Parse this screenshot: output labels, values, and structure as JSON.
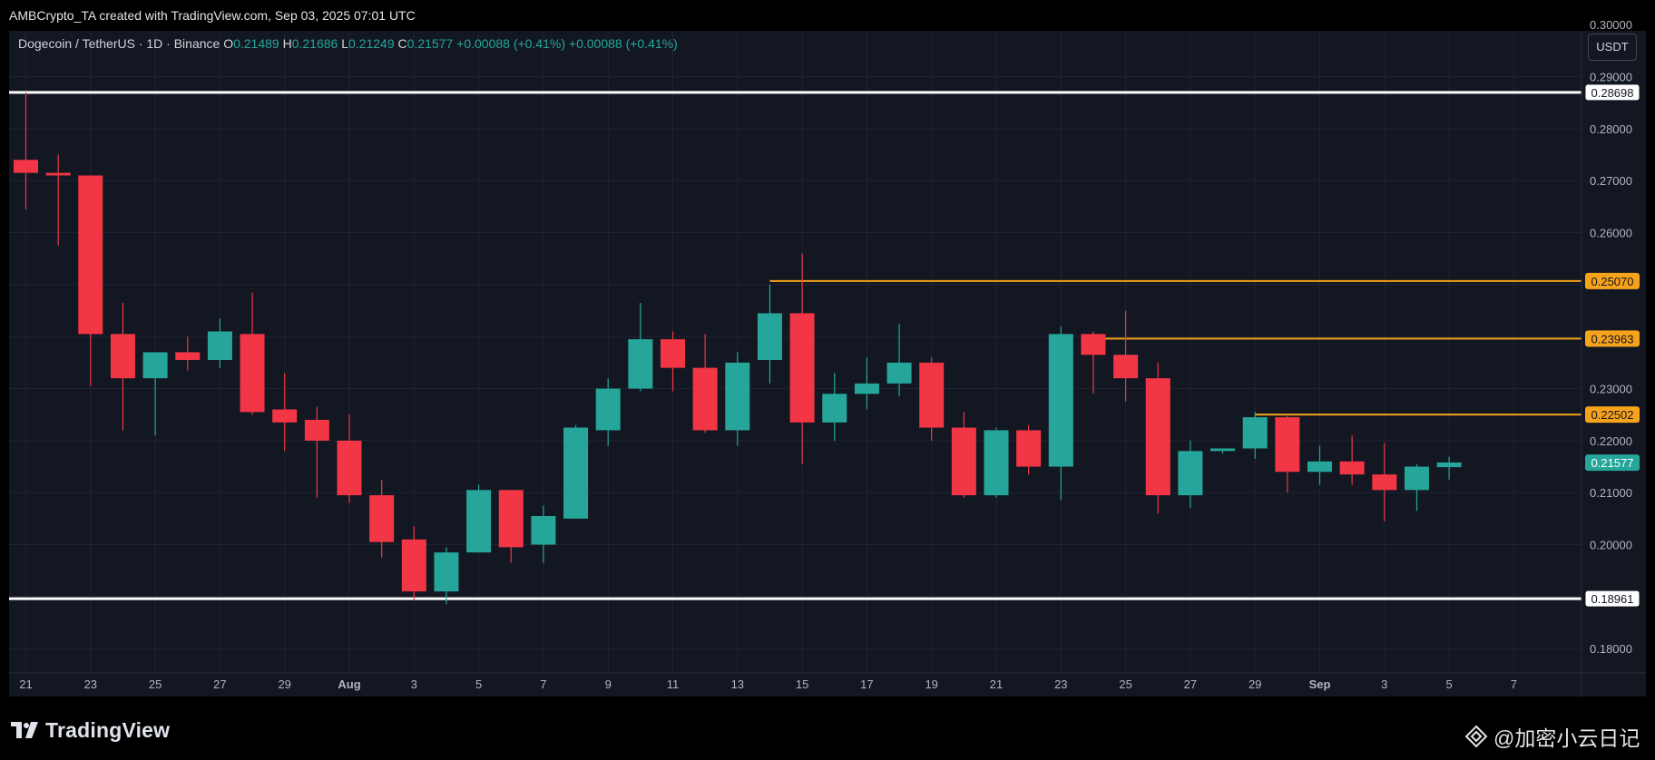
{
  "header": {
    "creator_line": "AMBCrypto_TA created with TradingView.com, Sep 03, 2025 07:01 UTC"
  },
  "legend": {
    "symbol": "Dogecoin / TetherUS · 1D · Binance",
    "open_label": "O",
    "open": "0.21489",
    "high_label": "H",
    "high": "0.21686",
    "low_label": "L",
    "low": "0.21249",
    "close_label": "C",
    "close": "0.21577",
    "change": "+0.00088 (+0.41%)",
    "change2": "+0.00088 (+0.41%)"
  },
  "unit_button": "USDT",
  "footer": {
    "brand": "TradingView",
    "watermark": "@加密小云日记"
  },
  "colors": {
    "up": "#26a69a",
    "down": "#f23645",
    "support_resistance": "#ffffff",
    "horizontal_ray": "#f7a21b",
    "background": "#131722",
    "grid": "#1f2433"
  },
  "chart_data": {
    "type": "candlestick",
    "ylim": [
      0.1755,
      0.2955
    ],
    "y_ticks": [
      "0.18000",
      "0.19000",
      "0.20000",
      "0.21000",
      "0.22000",
      "0.23000",
      "0.24000",
      "0.25000",
      "0.26000",
      "0.27000",
      "0.28000",
      "0.29000"
    ],
    "y_top_partial_tick": "0.30000",
    "x_ticks": [
      "21",
      "23",
      "25",
      "27",
      "29",
      "Aug",
      "3",
      "5",
      "7",
      "9",
      "11",
      "13",
      "15",
      "17",
      "19",
      "21",
      "23",
      "25",
      "27",
      "29",
      "Sep",
      "3",
      "5",
      "7"
    ],
    "start_date": "2025-07-21",
    "candles": [
      {
        "o": 0.274,
        "h": 0.287,
        "l": 0.2645,
        "c": 0.2715
      },
      {
        "o": 0.2715,
        "h": 0.275,
        "l": 0.2575,
        "c": 0.271
      },
      {
        "o": 0.271,
        "h": 0.271,
        "l": 0.2305,
        "c": 0.2405
      },
      {
        "o": 0.2405,
        "h": 0.2465,
        "l": 0.222,
        "c": 0.232
      },
      {
        "o": 0.232,
        "h": 0.237,
        "l": 0.221,
        "c": 0.237
      },
      {
        "o": 0.237,
        "h": 0.24,
        "l": 0.2335,
        "c": 0.2355
      },
      {
        "o": 0.2355,
        "h": 0.2435,
        "l": 0.234,
        "c": 0.241
      },
      {
        "o": 0.2405,
        "h": 0.2485,
        "l": 0.225,
        "c": 0.2255
      },
      {
        "o": 0.226,
        "h": 0.233,
        "l": 0.218,
        "c": 0.2235
      },
      {
        "o": 0.224,
        "h": 0.2265,
        "l": 0.209,
        "c": 0.22
      },
      {
        "o": 0.22,
        "h": 0.225,
        "l": 0.208,
        "c": 0.2095
      },
      {
        "o": 0.2095,
        "h": 0.2125,
        "l": 0.1975,
        "c": 0.2005
      },
      {
        "o": 0.201,
        "h": 0.2035,
        "l": 0.1893,
        "c": 0.191
      },
      {
        "o": 0.191,
        "h": 0.1995,
        "l": 0.1885,
        "c": 0.1985
      },
      {
        "o": 0.1985,
        "h": 0.2115,
        "l": 0.1985,
        "c": 0.2105
      },
      {
        "o": 0.2105,
        "h": 0.2105,
        "l": 0.1965,
        "c": 0.1995
      },
      {
        "o": 0.2,
        "h": 0.2075,
        "l": 0.1965,
        "c": 0.2055
      },
      {
        "o": 0.205,
        "h": 0.223,
        "l": 0.205,
        "c": 0.2225
      },
      {
        "o": 0.222,
        "h": 0.232,
        "l": 0.219,
        "c": 0.23
      },
      {
        "o": 0.23,
        "h": 0.2465,
        "l": 0.2295,
        "c": 0.2395
      },
      {
        "o": 0.2395,
        "h": 0.241,
        "l": 0.2295,
        "c": 0.234
      },
      {
        "o": 0.234,
        "h": 0.2405,
        "l": 0.2215,
        "c": 0.222
      },
      {
        "o": 0.222,
        "h": 0.237,
        "l": 0.219,
        "c": 0.235
      },
      {
        "o": 0.2355,
        "h": 0.25,
        "l": 0.231,
        "c": 0.2445
      },
      {
        "o": 0.2445,
        "h": 0.256,
        "l": 0.2155,
        "c": 0.2235
      },
      {
        "o": 0.2235,
        "h": 0.233,
        "l": 0.22,
        "c": 0.229
      },
      {
        "o": 0.229,
        "h": 0.236,
        "l": 0.226,
        "c": 0.231
      },
      {
        "o": 0.231,
        "h": 0.2425,
        "l": 0.2285,
        "c": 0.235
      },
      {
        "o": 0.235,
        "h": 0.236,
        "l": 0.22,
        "c": 0.2225
      },
      {
        "o": 0.2225,
        "h": 0.2255,
        "l": 0.209,
        "c": 0.2095
      },
      {
        "o": 0.2095,
        "h": 0.2225,
        "l": 0.209,
        "c": 0.222
      },
      {
        "o": 0.222,
        "h": 0.223,
        "l": 0.2135,
        "c": 0.215
      },
      {
        "o": 0.215,
        "h": 0.242,
        "l": 0.2085,
        "c": 0.2405
      },
      {
        "o": 0.2405,
        "h": 0.241,
        "l": 0.229,
        "c": 0.2365
      },
      {
        "o": 0.2365,
        "h": 0.245,
        "l": 0.2275,
        "c": 0.232
      },
      {
        "o": 0.232,
        "h": 0.235,
        "l": 0.206,
        "c": 0.2095
      },
      {
        "o": 0.2095,
        "h": 0.22,
        "l": 0.207,
        "c": 0.218
      },
      {
        "o": 0.218,
        "h": 0.2185,
        "l": 0.2175,
        "c": 0.2185
      },
      {
        "o": 0.2185,
        "h": 0.2255,
        "l": 0.2165,
        "c": 0.2245
      },
      {
        "o": 0.2245,
        "h": 0.225,
        "l": 0.21,
        "c": 0.214
      },
      {
        "o": 0.214,
        "h": 0.219,
        "l": 0.2115,
        "c": 0.216
      },
      {
        "o": 0.216,
        "h": 0.221,
        "l": 0.2115,
        "c": 0.2135
      },
      {
        "o": 0.2135,
        "h": 0.2195,
        "l": 0.2045,
        "c": 0.2105
      },
      {
        "o": 0.2105,
        "h": 0.2155,
        "l": 0.2065,
        "c": 0.215
      },
      {
        "o": 0.2149,
        "h": 0.2169,
        "l": 0.2125,
        "c": 0.2158
      }
    ],
    "levels": [
      {
        "value": 0.28698,
        "label": "0.28698",
        "style": "white",
        "from_index": 0
      },
      {
        "value": 0.18961,
        "label": "0.18961",
        "style": "white",
        "from_index": 0
      },
      {
        "value": 0.2507,
        "label": "0.25070",
        "style": "orange",
        "from_index": 23
      },
      {
        "value": 0.23963,
        "label": "0.23963",
        "style": "orange",
        "from_index": 33
      },
      {
        "value": 0.22502,
        "label": "0.22502",
        "style": "orange",
        "from_index": 38
      }
    ],
    "last_price": {
      "value": 0.21577,
      "label": "0.21577"
    }
  }
}
